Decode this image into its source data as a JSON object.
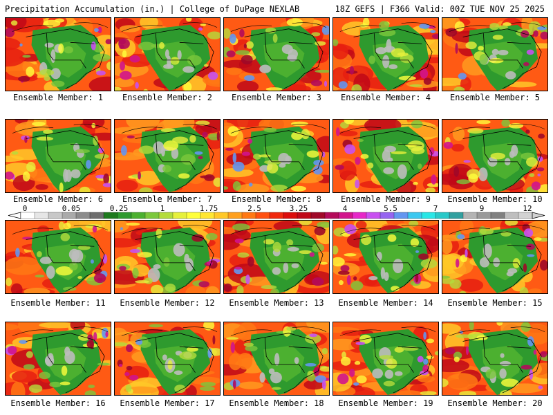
{
  "header": {
    "left": "Precipitation Accumulation (in.) | College of DuPage NEXLAB",
    "right": "18Z GEFS | F366 Valid: 00Z TUE NOV 25 2025"
  },
  "colorbar": {
    "labels": [
      "0",
      "0.05",
      "0.25",
      "1",
      "1.75",
      "2.5",
      "3.25",
      "4",
      "5.5",
      "7",
      "9",
      "12"
    ],
    "colors": [
      "#ffffff",
      "#e6e6e6",
      "#c8c8c8",
      "#aaaaaa",
      "#8c8c8c",
      "#6e6e6e",
      "#1e7a1e",
      "#2e9a2e",
      "#4cb030",
      "#7cc83c",
      "#b4dc3c",
      "#e6f03c",
      "#ffff3c",
      "#ffe632",
      "#ffc828",
      "#ffa01e",
      "#ff7814",
      "#ff5010",
      "#f0280e",
      "#dc0c0c",
      "#c00818",
      "#a00828",
      "#b40a5a",
      "#d2148c",
      "#e628c8",
      "#c850f0",
      "#9664f0",
      "#6496f0",
      "#3cc8f0",
      "#28e6e6",
      "#28c8c8",
      "#32a0a0",
      "#b4b4b4",
      "#9a9a9a",
      "#808080",
      "#bebebe",
      "#d2d2d2"
    ]
  },
  "members": [
    {
      "label": "Ensemble Member: 1"
    },
    {
      "label": "Ensemble Member: 2"
    },
    {
      "label": "Ensemble Member: 3"
    },
    {
      "label": "Ensemble Member: 4"
    },
    {
      "label": "Ensemble Member: 5"
    },
    {
      "label": "Ensemble Member: 6"
    },
    {
      "label": "Ensemble Member: 7"
    },
    {
      "label": "Ensemble Member: 8"
    },
    {
      "label": "Ensemble Member: 9"
    },
    {
      "label": "Ensemble Member: 10"
    },
    {
      "label": "Ensemble Member: 11"
    },
    {
      "label": "Ensemble Member: 12"
    },
    {
      "label": "Ensemble Member: 13"
    },
    {
      "label": "Ensemble Member: 14"
    },
    {
      "label": "Ensemble Member: 15"
    },
    {
      "label": "Ensemble Member: 16"
    },
    {
      "label": "Ensemble Member: 17"
    },
    {
      "label": "Ensemble Member: 18"
    },
    {
      "label": "Ensemble Member: 19"
    },
    {
      "label": "Ensemble Member: 20"
    }
  ]
}
